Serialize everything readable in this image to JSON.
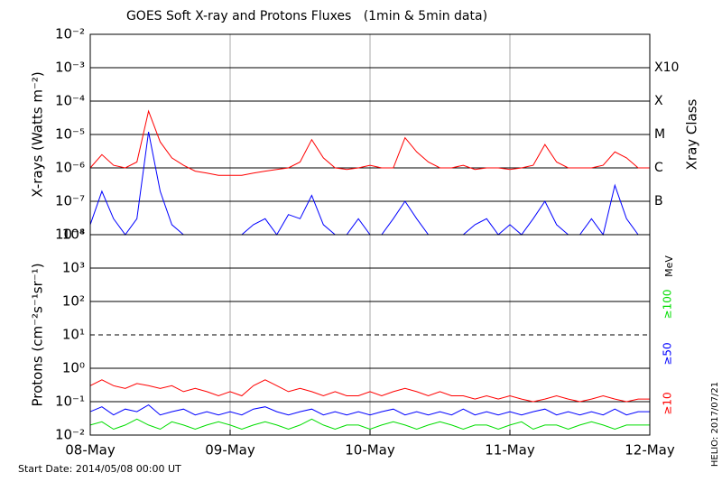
{
  "title": "GOES Soft X-ray and Protons Fluxes   (1min & 5min data)",
  "start_date": "Start Date: 2014/05/08 00:00 UT",
  "credit": "HELIO: 2017/07/21",
  "chart_data": [
    {
      "type": "line",
      "ylabel": "X-rays (Watts m⁻²)",
      "y2label": "Xray Class",
      "log_y": true,
      "ylim": [
        1e-08,
        0.01
      ],
      "yticks": [
        {
          "value": 1e-08,
          "label": "10⁻⁸"
        },
        {
          "value": 1e-07,
          "label": "10⁻⁷"
        },
        {
          "value": 1e-06,
          "label": "10⁻⁶"
        },
        {
          "value": 1e-05,
          "label": "10⁻⁵"
        },
        {
          "value": 0.0001,
          "label": "10⁻⁴"
        },
        {
          "value": 0.001,
          "label": "10⁻³"
        },
        {
          "value": 0.01,
          "label": "10⁻²"
        }
      ],
      "y2lim": [
        1e-08,
        0.01
      ],
      "y2ticks": [
        {
          "value": 1e-07,
          "label": "B"
        },
        {
          "value": 1e-06,
          "label": "C"
        },
        {
          "value": 1e-05,
          "label": "M"
        },
        {
          "value": 0.0001,
          "label": "X"
        },
        {
          "value": 0.001,
          "label": "X10"
        }
      ],
      "grid": true,
      "x": [
        "2014-05-08 00:00",
        "2014-05-08 02:00",
        "2014-05-08 04:00",
        "2014-05-08 06:00",
        "2014-05-08 08:00",
        "2014-05-08 10:00",
        "2014-05-08 12:00",
        "2014-05-08 14:00",
        "2014-05-08 16:00",
        "2014-05-08 18:00",
        "2014-05-08 20:00",
        "2014-05-08 22:00",
        "2014-05-09 00:00",
        "2014-05-09 02:00",
        "2014-05-09 04:00",
        "2014-05-09 06:00",
        "2014-05-09 08:00",
        "2014-05-09 10:00",
        "2014-05-09 12:00",
        "2014-05-09 14:00",
        "2014-05-09 16:00",
        "2014-05-09 18:00",
        "2014-05-09 20:00",
        "2014-05-09 22:00",
        "2014-05-10 00:00",
        "2014-05-10 02:00",
        "2014-05-10 04:00",
        "2014-05-10 06:00",
        "2014-05-10 08:00",
        "2014-05-10 10:00",
        "2014-05-10 12:00",
        "2014-05-10 14:00",
        "2014-05-10 16:00",
        "2014-05-10 18:00",
        "2014-05-10 20:00",
        "2014-05-10 22:00",
        "2014-05-11 00:00",
        "2014-05-11 02:00",
        "2014-05-11 04:00",
        "2014-05-11 06:00",
        "2014-05-11 08:00",
        "2014-05-11 10:00",
        "2014-05-11 12:00",
        "2014-05-11 14:00",
        "2014-05-11 16:00",
        "2014-05-11 18:00",
        "2014-05-11 20:00",
        "2014-05-11 22:00",
        "2014-05-12 00:00"
      ],
      "series": [
        {
          "color": "#ff0000",
          "values": [
            1e-06,
            2.5e-06,
            1.2e-06,
            1e-06,
            1.5e-06,
            5e-05,
            6e-06,
            2e-06,
            1.2e-06,
            8e-07,
            7e-07,
            6e-07,
            6e-07,
            6e-07,
            7e-07,
            8e-07,
            9e-07,
            1e-06,
            1.5e-06,
            7e-06,
            2e-06,
            1e-06,
            9e-07,
            1e-06,
            1.2e-06,
            1e-06,
            1e-06,
            8e-06,
            3e-06,
            1.5e-06,
            1e-06,
            1e-06,
            1.2e-06,
            9e-07,
            1e-06,
            1e-06,
            9e-07,
            1e-06,
            1.2e-06,
            5e-06,
            1.5e-06,
            1e-06,
            1e-06,
            1e-06,
            1.2e-06,
            3e-06,
            2e-06,
            1e-06,
            1e-06
          ]
        },
        {
          "color": "#0000ff",
          "values": [
            2e-08,
            2e-07,
            3e-08,
            1e-08,
            3e-08,
            1.2e-05,
            2e-07,
            2e-08,
            1e-08,
            1e-08,
            1e-08,
            1e-08,
            1e-08,
            1e-08,
            2e-08,
            3e-08,
            1e-08,
            4e-08,
            3e-08,
            1.5e-07,
            2e-08,
            1e-08,
            1e-08,
            3e-08,
            1e-08,
            1e-08,
            3e-08,
            1e-07,
            3e-08,
            1e-08,
            1e-08,
            1e-08,
            1e-08,
            2e-08,
            3e-08,
            1e-08,
            2e-08,
            1e-08,
            3e-08,
            1e-07,
            2e-08,
            1e-08,
            1e-08,
            3e-08,
            1e-08,
            3e-07,
            3e-08,
            1e-08,
            1e-08
          ]
        }
      ]
    },
    {
      "type": "line",
      "ylabel": "Protons (cm⁻²s⁻¹sr⁻¹)",
      "log_y": true,
      "legend_title": "MeV",
      "ylim": [
        0.01,
        10000
      ],
      "yticks": [
        {
          "value": 0.01,
          "label": "10⁻²"
        },
        {
          "value": 0.1,
          "label": "10⁻¹"
        },
        {
          "value": 1,
          "label": "10⁰"
        },
        {
          "value": 10,
          "label": "10¹"
        },
        {
          "value": 100,
          "label": "10²"
        },
        {
          "value": 1000,
          "label": "10³"
        },
        {
          "value": 10000,
          "label": "10⁴"
        }
      ],
      "grid": true,
      "dashed_line": 10,
      "xticks": [
        {
          "value": "2014-05-08 00:00",
          "label": "08-May"
        },
        {
          "value": "2014-05-09 00:00",
          "label": "09-May"
        },
        {
          "value": "2014-05-10 00:00",
          "label": "10-May"
        },
        {
          "value": "2014-05-11 00:00",
          "label": "11-May"
        },
        {
          "value": "2014-05-12 00:00",
          "label": "12-May"
        }
      ],
      "xlim": [
        "2014-05-08 00:00",
        "2014-05-12 00:00"
      ],
      "x": [
        "2014-05-08 00:00",
        "2014-05-08 02:00",
        "2014-05-08 04:00",
        "2014-05-08 06:00",
        "2014-05-08 08:00",
        "2014-05-08 10:00",
        "2014-05-08 12:00",
        "2014-05-08 14:00",
        "2014-05-08 16:00",
        "2014-05-08 18:00",
        "2014-05-08 20:00",
        "2014-05-08 22:00",
        "2014-05-09 00:00",
        "2014-05-09 02:00",
        "2014-05-09 04:00",
        "2014-05-09 06:00",
        "2014-05-09 08:00",
        "2014-05-09 10:00",
        "2014-05-09 12:00",
        "2014-05-09 14:00",
        "2014-05-09 16:00",
        "2014-05-09 18:00",
        "2014-05-09 20:00",
        "2014-05-09 22:00",
        "2014-05-10 00:00",
        "2014-05-10 02:00",
        "2014-05-10 04:00",
        "2014-05-10 06:00",
        "2014-05-10 08:00",
        "2014-05-10 10:00",
        "2014-05-10 12:00",
        "2014-05-10 14:00",
        "2014-05-10 16:00",
        "2014-05-10 18:00",
        "2014-05-10 20:00",
        "2014-05-10 22:00",
        "2014-05-11 00:00",
        "2014-05-11 02:00",
        "2014-05-11 04:00",
        "2014-05-11 06:00",
        "2014-05-11 08:00",
        "2014-05-11 10:00",
        "2014-05-11 12:00",
        "2014-05-11 14:00",
        "2014-05-11 16:00",
        "2014-05-11 18:00",
        "2014-05-11 20:00",
        "2014-05-11 22:00",
        "2014-05-12 00:00"
      ],
      "series": [
        {
          "name": "≥10",
          "color": "#ff0000",
          "values": [
            0.3,
            0.45,
            0.3,
            0.25,
            0.35,
            0.3,
            0.25,
            0.3,
            0.2,
            0.25,
            0.2,
            0.15,
            0.2,
            0.15,
            0.3,
            0.45,
            0.3,
            0.2,
            0.25,
            0.2,
            0.15,
            0.2,
            0.15,
            0.15,
            0.2,
            0.15,
            0.2,
            0.25,
            0.2,
            0.15,
            0.2,
            0.15,
            0.15,
            0.12,
            0.15,
            0.12,
            0.15,
            0.12,
            0.1,
            0.12,
            0.15,
            0.12,
            0.1,
            0.12,
            0.15,
            0.12,
            0.1,
            0.12,
            0.12
          ]
        },
        {
          "name": "≥50",
          "color": "#0000ff",
          "values": [
            0.05,
            0.07,
            0.04,
            0.06,
            0.05,
            0.08,
            0.04,
            0.05,
            0.06,
            0.04,
            0.05,
            0.04,
            0.05,
            0.04,
            0.06,
            0.07,
            0.05,
            0.04,
            0.05,
            0.06,
            0.04,
            0.05,
            0.04,
            0.05,
            0.04,
            0.05,
            0.06,
            0.04,
            0.05,
            0.04,
            0.05,
            0.04,
            0.06,
            0.04,
            0.05,
            0.04,
            0.05,
            0.04,
            0.05,
            0.06,
            0.04,
            0.05,
            0.04,
            0.05,
            0.04,
            0.06,
            0.04,
            0.05,
            0.05
          ]
        },
        {
          "name": "≥100",
          "color": "#00dd00",
          "values": [
            0.02,
            0.025,
            0.015,
            0.02,
            0.03,
            0.02,
            0.015,
            0.025,
            0.02,
            0.015,
            0.02,
            0.025,
            0.02,
            0.015,
            0.02,
            0.025,
            0.02,
            0.015,
            0.02,
            0.03,
            0.02,
            0.015,
            0.02,
            0.02,
            0.015,
            0.02,
            0.025,
            0.02,
            0.015,
            0.02,
            0.025,
            0.02,
            0.015,
            0.02,
            0.02,
            0.015,
            0.02,
            0.025,
            0.015,
            0.02,
            0.02,
            0.015,
            0.02,
            0.025,
            0.02,
            0.015,
            0.02,
            0.02,
            0.02
          ]
        }
      ]
    }
  ]
}
